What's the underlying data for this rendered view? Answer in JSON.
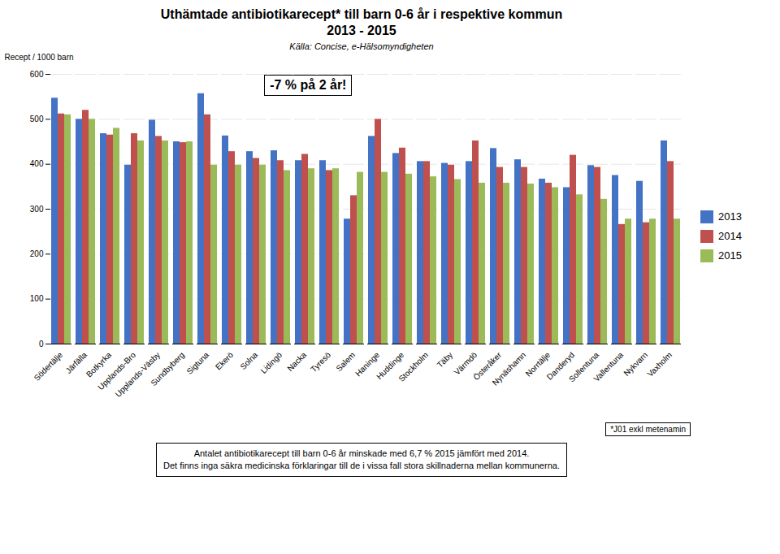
{
  "chart_data": {
    "type": "bar",
    "title": "Uthämtade antibiotikarecept* till barn 0-6 år i respektive kommun\n2013 - 2015",
    "subtitle": "Källa: Concise, e-Hälsomyndigheten",
    "ylabel": "Recept / 1000 barn",
    "annotations": [
      "-7 % på 2 år!",
      "*J01 exkl metenamin",
      "Antalet antibiotikarecept till barn 0-6 år minskade med 6,7 % 2015 jämfört med 2014.\nDet finns inga säkra medicinska förklaringar till de i vissa fall stora skillnaderna mellan kommunerna."
    ],
    "categories": [
      "Södertälje",
      "Järfälla",
      "Botkyrka",
      "Upplands-Bro",
      "Upplands-Väsby",
      "Sundbyberg",
      "Sigtuna",
      "Ekerö",
      "Solna",
      "Lidingö",
      "Nacka",
      "Tyresö",
      "Salem",
      "Haninge",
      "Huddinge",
      "Stockholm",
      "Täby",
      "Värmdö",
      "Österåker",
      "Nynäshamn",
      "Norrtälje",
      "Danderyd",
      "Sollentuna",
      "Vallentuna",
      "Nykvarn",
      "Vaxholm"
    ],
    "series": [
      {
        "name": "2013",
        "color": "#4472C4",
        "values": [
          547,
          500,
          468,
          398,
          498,
          450,
          557,
          463,
          428,
          430,
          408,
          408,
          278,
          462,
          424,
          406,
          402,
          406,
          435,
          410,
          367,
          348,
          397,
          375,
          362,
          452
        ]
      },
      {
        "name": "2014",
        "color": "#C0504D",
        "values": [
          512,
          520,
          465,
          468,
          462,
          448,
          510,
          428,
          413,
          408,
          422,
          386,
          330,
          500,
          436,
          406,
          398,
          452,
          393,
          393,
          358,
          420,
          393,
          266,
          270,
          406
        ]
      },
      {
        "name": "2015",
        "color": "#9BBB59",
        "values": [
          510,
          500,
          480,
          452,
          452,
          450,
          398,
          398,
          398,
          386,
          390,
          390,
          382,
          382,
          378,
          372,
          366,
          358,
          358,
          356,
          348,
          332,
          322,
          278,
          278,
          278
        ]
      }
    ],
    "ylim": [
      0,
      600
    ],
    "yticks": [
      0,
      100,
      200,
      300,
      400,
      500,
      600
    ],
    "grid": true,
    "legend": "right"
  }
}
